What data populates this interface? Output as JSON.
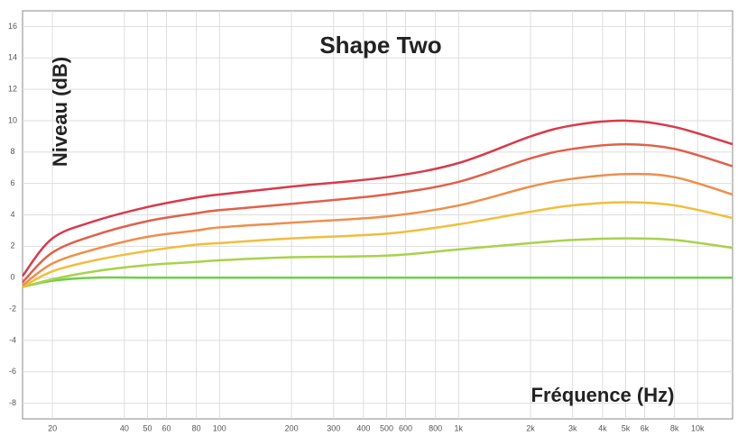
{
  "chart_data": {
    "type": "line",
    "title": "Shape Two",
    "y_label": "Niveau (dB)",
    "x_label": "Fréquence (Hz)",
    "x_scale": "log",
    "grid": true,
    "x": [
      15,
      20,
      30,
      50,
      80,
      100,
      200,
      500,
      1000,
      2000,
      3000,
      5000,
      8000,
      14000
    ],
    "series": [
      {
        "color": "#6fcf4a",
        "values": [
          -0.6,
          -0.2,
          0,
          0,
          0,
          0,
          0,
          0,
          0,
          0,
          0,
          0,
          0,
          0
        ]
      },
      {
        "color": "#a8d24a",
        "values": [
          -0.6,
          -0.1,
          0.4,
          0.8,
          1.0,
          1.1,
          1.3,
          1.4,
          1.8,
          2.2,
          2.4,
          2.5,
          2.4,
          1.9
        ]
      },
      {
        "color": "#f2bd3c",
        "values": [
          -0.6,
          0.4,
          1.1,
          1.7,
          2.1,
          2.2,
          2.5,
          2.8,
          3.4,
          4.2,
          4.6,
          4.8,
          4.6,
          3.8
        ]
      },
      {
        "color": "#ef8e4a",
        "values": [
          -0.5,
          0.9,
          1.8,
          2.6,
          3.0,
          3.2,
          3.5,
          3.9,
          4.6,
          5.8,
          6.3,
          6.6,
          6.4,
          5.3
        ]
      },
      {
        "color": "#e0604a",
        "values": [
          -0.3,
          1.6,
          2.7,
          3.6,
          4.1,
          4.3,
          4.7,
          5.3,
          6.1,
          7.6,
          8.2,
          8.5,
          8.2,
          7.1
        ]
      },
      {
        "color": "#d83a4a",
        "values": [
          0.1,
          2.5,
          3.6,
          4.5,
          5.1,
          5.3,
          5.8,
          6.4,
          7.3,
          9.0,
          9.7,
          10,
          9.6,
          8.5
        ]
      }
    ],
    "xlim": [
      15,
      14000
    ],
    "ylim": [
      -9,
      17
    ],
    "xticks": [
      20,
      40,
      50,
      60,
      80,
      100,
      200,
      300,
      400,
      500,
      600,
      800,
      {
        "value": 1000,
        "label": "1k"
      },
      {
        "value": 2000,
        "label": "2k"
      },
      {
        "value": 3000,
        "label": "3k"
      },
      {
        "value": 4000,
        "label": "4k"
      },
      {
        "value": 5000,
        "label": "5k"
      },
      {
        "value": 6000,
        "label": "6k"
      },
      {
        "value": 8000,
        "label": "8k"
      },
      {
        "value": 10000,
        "label": "10k"
      }
    ],
    "yticks": [
      -8,
      -6,
      -4,
      -2,
      0,
      2,
      4,
      6,
      8,
      10,
      12,
      14,
      16
    ]
  }
}
